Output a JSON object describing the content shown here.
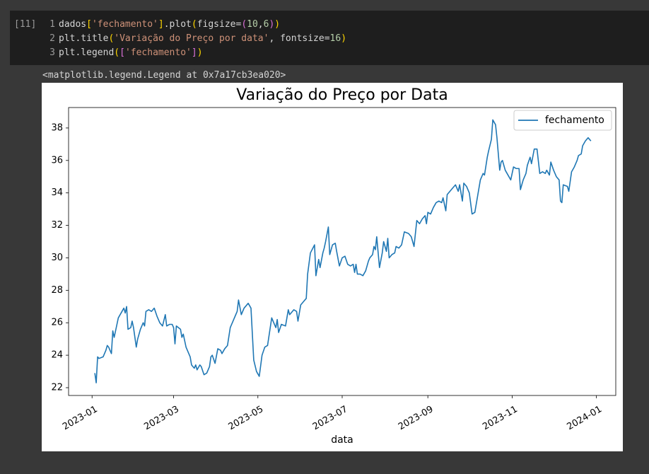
{
  "cell": {
    "execution_count": "[11]",
    "lines": [
      {
        "number": "1",
        "tokens": [
          {
            "text": "dados",
            "color": "#d4d4d4"
          },
          {
            "text": "[",
            "color": "#ffd700"
          },
          {
            "text": "'fechamento'",
            "color": "#ce9178"
          },
          {
            "text": "]",
            "color": "#ffd700"
          },
          {
            "text": ".plot",
            "color": "#d4d4d4"
          },
          {
            "text": "(",
            "color": "#ffd700"
          },
          {
            "text": "figsize=",
            "color": "#d4d4d4"
          },
          {
            "text": "(",
            "color": "#da70d6"
          },
          {
            "text": "10",
            "color": "#b5cea8"
          },
          {
            "text": ",",
            "color": "#d4d4d4"
          },
          {
            "text": "6",
            "color": "#b5cea8"
          },
          {
            "text": ")",
            "color": "#da70d6"
          },
          {
            "text": ")",
            "color": "#ffd700"
          }
        ]
      },
      {
        "number": "2",
        "tokens": [
          {
            "text": "plt.title",
            "color": "#d4d4d4"
          },
          {
            "text": "(",
            "color": "#ffd700"
          },
          {
            "text": "'Variação do Preço por data'",
            "color": "#ce9178"
          },
          {
            "text": ", fontsize=",
            "color": "#d4d4d4"
          },
          {
            "text": "16",
            "color": "#b5cea8"
          },
          {
            "text": ")",
            "color": "#ffd700"
          }
        ]
      },
      {
        "number": "3",
        "tokens": [
          {
            "text": "plt.legend",
            "color": "#d4d4d4"
          },
          {
            "text": "(",
            "color": "#ffd700"
          },
          {
            "text": "[",
            "color": "#da70d6"
          },
          {
            "text": "'fechamento'",
            "color": "#ce9178"
          },
          {
            "text": "]",
            "color": "#da70d6"
          },
          {
            "text": ")",
            "color": "#ffd700"
          }
        ]
      }
    ],
    "output": "<matplotlib.legend.Legend at 0x7a17cb3ea020>"
  },
  "chart_data": {
    "type": "line",
    "title": "Variação do Preço por Data",
    "x_label": "data",
    "legend_position": "upper right",
    "xlim": [
      -17,
      379
    ],
    "ylim": [
      21.52,
      39.26
    ],
    "xticks": [
      {
        "value": 0,
        "label": "2023-01"
      },
      {
        "value": 59,
        "label": "2023-03"
      },
      {
        "value": 120,
        "label": "2023-05"
      },
      {
        "value": 181,
        "label": "2023-07"
      },
      {
        "value": 243,
        "label": "2023-09"
      },
      {
        "value": 304,
        "label": "2023-11"
      },
      {
        "value": 365,
        "label": "2024-01"
      }
    ],
    "yticks": [
      22,
      24,
      26,
      28,
      30,
      32,
      34,
      36,
      38
    ],
    "series": [
      {
        "name": "fechamento",
        "color": "#1f77b4",
        "x": [
          2,
          3,
          4,
          5,
          8,
          10,
          11,
          12,
          14,
          15,
          16,
          18,
          19,
          21,
          23,
          24,
          25,
          26,
          28,
          29,
          30,
          32,
          33,
          35,
          37,
          38,
          39,
          41,
          43,
          45,
          47,
          49,
          51,
          53,
          54,
          56,
          58,
          59,
          60,
          61,
          64,
          65,
          66,
          68,
          71,
          72,
          74,
          75,
          76,
          78,
          79,
          81,
          83,
          85,
          86,
          87,
          89,
          91,
          93,
          94,
          96,
          98,
          100,
          102,
          104,
          105,
          106,
          108,
          110,
          113,
          115,
          117,
          119,
          121,
          123,
          125,
          127,
          130,
          132,
          133,
          134,
          135,
          137,
          140,
          142,
          143,
          146,
          148,
          149,
          151,
          153,
          155,
          156,
          158,
          161,
          162,
          164,
          165,
          167,
          168,
          169,
          171,
          172,
          174,
          176,
          177,
          179,
          181,
          183,
          185,
          187,
          189,
          190,
          191,
          192,
          194,
          196,
          198,
          200,
          201,
          203,
          204,
          205,
          206,
          208,
          210,
          211,
          213,
          214,
          215,
          217,
          219,
          220,
          222,
          224,
          226,
          229,
          231,
          233,
          235,
          237,
          239,
          241,
          242,
          243,
          245,
          247,
          249,
          251,
          253,
          254,
          256,
          257,
          259,
          261,
          263,
          265,
          266,
          268,
          269,
          271,
          273,
          275,
          277,
          279,
          281,
          283,
          284,
          286,
          287,
          289,
          290,
          292,
          293,
          295,
          296,
          297,
          299,
          301,
          303,
          305,
          307,
          309,
          310,
          312,
          314,
          315,
          317,
          318,
          320,
          322,
          324,
          326,
          328,
          329,
          331,
          332,
          334,
          336,
          338,
          339,
          340,
          341,
          344,
          345,
          347,
          349,
          351,
          352,
          354,
          355,
          357,
          359,
          361
        ],
        "values": [
          22.9,
          22.3,
          23.9,
          23.8,
          23.9,
          24.3,
          24.6,
          24.5,
          24.1,
          25.5,
          25.1,
          25.9,
          26.3,
          26.6,
          26.9,
          26.6,
          27.0,
          25.6,
          25.7,
          26.1,
          25.7,
          24.5,
          25.0,
          25.6,
          26.0,
          25.8,
          26.7,
          26.8,
          26.7,
          26.9,
          26.4,
          26.0,
          25.8,
          26.5,
          25.8,
          25.9,
          25.9,
          25.7,
          24.7,
          25.8,
          25.6,
          25.1,
          25.3,
          24.5,
          23.9,
          23.4,
          23.2,
          23.4,
          23.1,
          23.4,
          23.3,
          22.8,
          22.9,
          23.3,
          23.9,
          24.0,
          23.5,
          24.4,
          24.3,
          24.1,
          24.4,
          24.6,
          25.7,
          26.1,
          26.5,
          26.7,
          27.4,
          26.5,
          26.9,
          27.2,
          26.9,
          23.7,
          23.0,
          22.7,
          24.0,
          24.5,
          24.6,
          26.3,
          25.9,
          25.7,
          26.2,
          25.4,
          25.9,
          25.8,
          26.8,
          26.5,
          26.8,
          26.7,
          26.1,
          27.1,
          27.3,
          27.5,
          29.0,
          30.3,
          30.8,
          28.9,
          29.9,
          29.4,
          30.3,
          30.6,
          31.0,
          31.9,
          30.2,
          30.8,
          30.9,
          30.4,
          29.5,
          30.0,
          30.1,
          29.6,
          29.5,
          29.6,
          29.1,
          29.6,
          29.0,
          29.0,
          28.9,
          29.2,
          29.8,
          30.0,
          30.2,
          30.7,
          30.5,
          31.3,
          29.4,
          30.3,
          31.0,
          30.4,
          31.2,
          30.0,
          30.2,
          30.3,
          30.7,
          30.6,
          30.8,
          31.6,
          31.5,
          31.3,
          30.7,
          32.3,
          32.1,
          32.4,
          32.6,
          32.1,
          32.8,
          32.7,
          33.1,
          33.4,
          33.5,
          33.4,
          33.7,
          32.9,
          33.9,
          34.1,
          34.3,
          34.5,
          34.1,
          34.5,
          33.5,
          34.6,
          34.4,
          34.0,
          32.7,
          32.8,
          33.8,
          34.8,
          35.2,
          35.1,
          36.2,
          36.6,
          37.3,
          38.5,
          38.2,
          37.4,
          35.4,
          35.9,
          36.0,
          35.4,
          35.1,
          34.8,
          35.6,
          35.5,
          35.5,
          34.2,
          34.8,
          35.2,
          35.7,
          36.2,
          35.8,
          36.7,
          36.7,
          35.2,
          35.3,
          35.2,
          35.4,
          35.1,
          35.9,
          35.4,
          35.0,
          34.8,
          33.5,
          33.4,
          34.5,
          34.4,
          34.1,
          35.3,
          35.6,
          36.0,
          36.3,
          36.4,
          36.9,
          37.2,
          37.4,
          37.2
        ]
      }
    ]
  }
}
